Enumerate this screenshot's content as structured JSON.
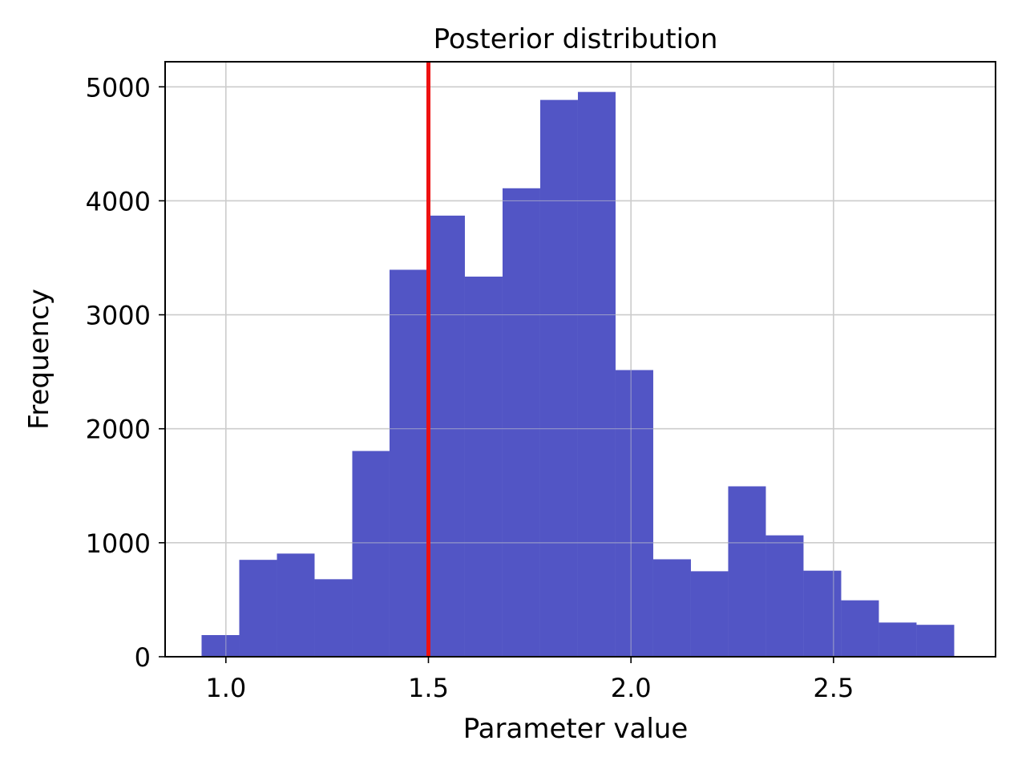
{
  "chart_data": {
    "type": "bar",
    "title": "Posterior distribution",
    "xlabel": "Parameter value",
    "ylabel": "Frequency",
    "xlim": [
      0.85,
      2.9
    ],
    "ylim": [
      0,
      5220
    ],
    "grid": true,
    "bar_color": "#4f52c4",
    "marker_line": {
      "x": 1.5,
      "color": "#ee1111"
    },
    "xticks": [
      {
        "value": 1.0,
        "label": "1.0"
      },
      {
        "value": 1.5,
        "label": "1.5"
      },
      {
        "value": 2.0,
        "label": "2.0"
      },
      {
        "value": 2.5,
        "label": "2.5"
      }
    ],
    "yticks": [
      {
        "value": 0,
        "label": "0"
      },
      {
        "value": 1000,
        "label": "1000"
      },
      {
        "value": 2000,
        "label": "2000"
      },
      {
        "value": 3000,
        "label": "3000"
      },
      {
        "value": 4000,
        "label": "4000"
      },
      {
        "value": 5000,
        "label": "5000"
      }
    ],
    "bins": [
      {
        "x0": 0.94,
        "x1": 1.033,
        "count": 190
      },
      {
        "x0": 1.033,
        "x1": 1.126,
        "count": 850
      },
      {
        "x0": 1.126,
        "x1": 1.219,
        "count": 905
      },
      {
        "x0": 1.219,
        "x1": 1.312,
        "count": 680
      },
      {
        "x0": 1.312,
        "x1": 1.404,
        "count": 1805
      },
      {
        "x0": 1.404,
        "x1": 1.497,
        "count": 3395
      },
      {
        "x0": 1.497,
        "x1": 1.59,
        "count": 3870
      },
      {
        "x0": 1.59,
        "x1": 1.683,
        "count": 3335
      },
      {
        "x0": 1.683,
        "x1": 1.776,
        "count": 4110
      },
      {
        "x0": 1.776,
        "x1": 1.869,
        "count": 4885
      },
      {
        "x0": 1.869,
        "x1": 1.962,
        "count": 4955
      },
      {
        "x0": 1.962,
        "x1": 2.055,
        "count": 2515
      },
      {
        "x0": 2.055,
        "x1": 2.148,
        "count": 855
      },
      {
        "x0": 2.148,
        "x1": 2.24,
        "count": 750
      },
      {
        "x0": 2.24,
        "x1": 2.333,
        "count": 1495
      },
      {
        "x0": 2.333,
        "x1": 2.426,
        "count": 1065
      },
      {
        "x0": 2.426,
        "x1": 2.519,
        "count": 755
      },
      {
        "x0": 2.519,
        "x1": 2.612,
        "count": 495
      },
      {
        "x0": 2.612,
        "x1": 2.705,
        "count": 300
      },
      {
        "x0": 2.705,
        "x1": 2.798,
        "count": 280
      }
    ]
  }
}
